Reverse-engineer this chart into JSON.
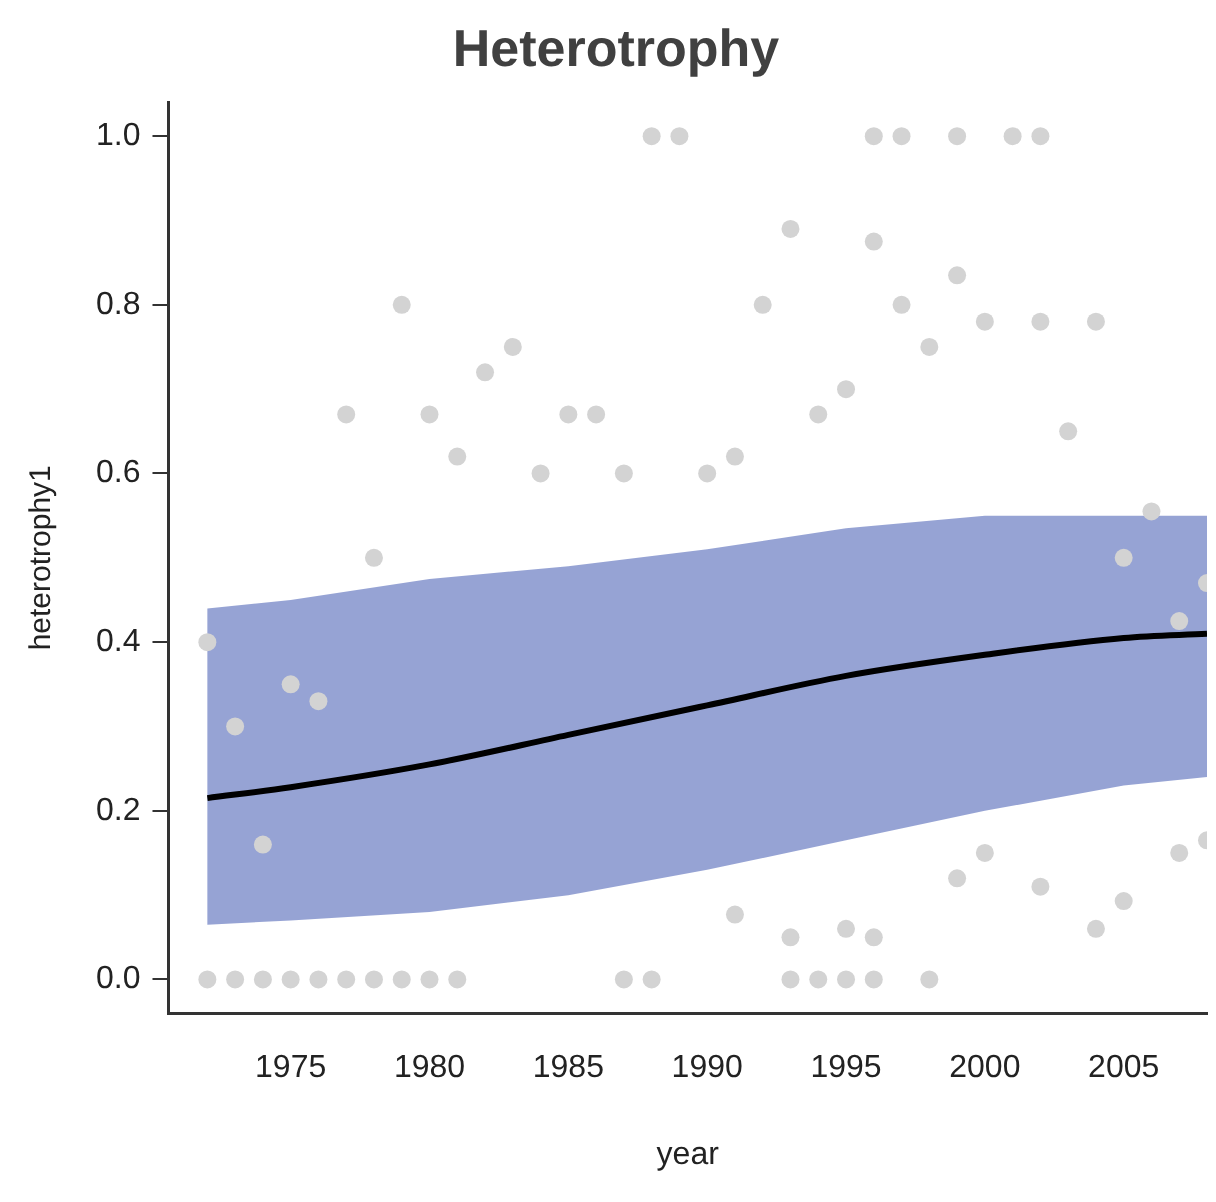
{
  "chart_data": {
    "type": "scatter",
    "title": "Heterotrophy",
    "xlabel": "year",
    "ylabel": "heterotrophy1",
    "xlim": [
      1970.6,
      2008
    ],
    "xticks": [
      1975,
      1980,
      1985,
      1990,
      1995,
      2000,
      2005
    ],
    "ylim": [
      -0.04,
      1.04
    ],
    "yticks": [
      {
        "value": 0,
        "label": "0.0"
      },
      0.2,
      0.4,
      0.6,
      0.8,
      {
        "value": 1,
        "label": "1.0"
      }
    ],
    "grid": false,
    "legend": false,
    "marker": "circle",
    "series": [
      {
        "color": "#d3d3d3",
        "x": [
          1972,
          1972,
          1973,
          1973,
          1974,
          1974,
          1975,
          1975,
          1976,
          1976,
          1977,
          1977,
          1978,
          1978,
          1979,
          1979,
          1980,
          1980,
          1981,
          1981,
          1982,
          1983,
          1984,
          1985,
          1986,
          1987,
          1987,
          1988,
          1988,
          1989,
          1990,
          1991,
          1991,
          1992,
          1993,
          1993,
          1993,
          1994,
          1994,
          1995,
          1995,
          1995,
          1996,
          1996,
          1996,
          1996,
          1997,
          1997,
          1998,
          1998,
          1999,
          1999,
          1999,
          2000,
          2000,
          2001,
          2002,
          2002,
          2002,
          2003,
          2004,
          2004,
          2005,
          2005,
          2006,
          2007,
          2007,
          2008,
          2008
        ],
        "values": [
          0,
          0.4,
          0,
          0.3,
          0,
          0.16,
          0,
          0.35,
          0,
          0.33,
          0,
          0.67,
          0,
          0.5,
          0,
          0.8,
          0,
          0.67,
          0,
          0.62,
          0.72,
          0.75,
          0.6,
          0.67,
          0.67,
          0,
          0.6,
          0,
          1.0,
          1.0,
          0.6,
          0.077,
          0.62,
          0.8,
          0,
          0.05,
          0.89,
          0,
          0.67,
          0,
          0.06,
          0.7,
          0,
          0.05,
          0.875,
          1.0,
          0.8,
          1.0,
          0,
          0.75,
          0.12,
          0.835,
          1.0,
          0.15,
          0.78,
          1.0,
          0.11,
          0.78,
          1.0,
          0.65,
          0.06,
          0.78,
          0.093,
          0.5,
          0.555,
          0.15,
          0.425,
          0.165,
          0.47
        ]
      },
      {
        "type": "line",
        "color": "#000000",
        "marker": "none",
        "x": [
          1972,
          1975,
          1980,
          1985,
          1990,
          1995,
          2000,
          2005,
          2008
        ],
        "values": [
          0.215,
          0.228,
          0.255,
          0.29,
          0.325,
          0.36,
          0.385,
          0.405,
          0.41
        ],
        "lower": [
          0.065,
          0.07,
          0.08,
          0.1,
          0.13,
          0.165,
          0.2,
          0.23,
          0.24
        ],
        "upper": [
          0.44,
          0.45,
          0.475,
          0.49,
          0.51,
          0.535,
          0.55,
          0.55,
          0.55
        ]
      }
    ]
  }
}
